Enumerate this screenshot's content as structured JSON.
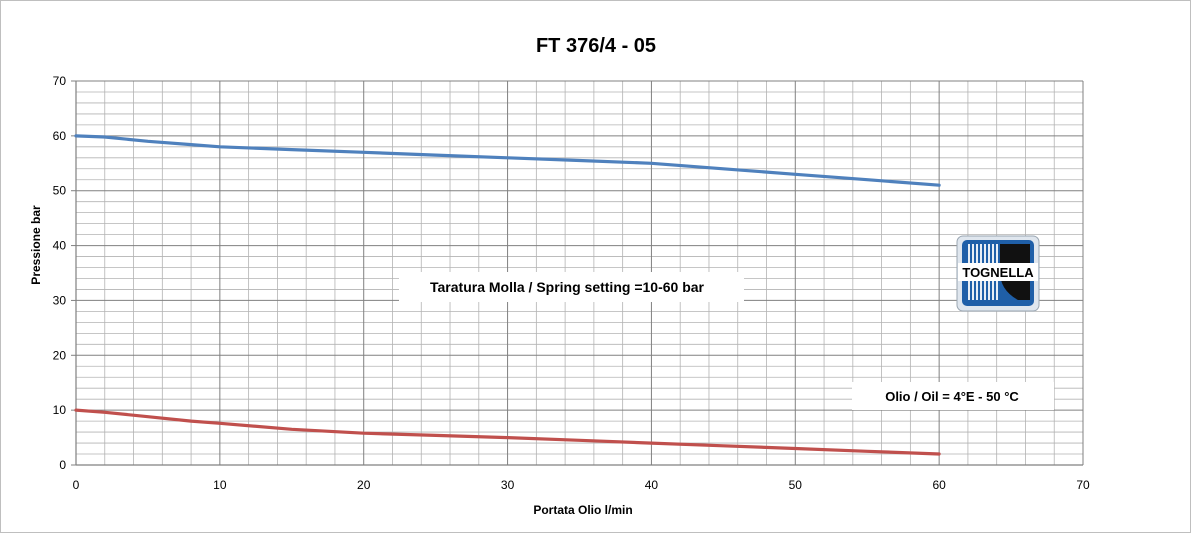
{
  "chart_data": {
    "type": "line",
    "title": "FT 376/4 - 05",
    "xlabel": "Portata Olio l/min",
    "ylabel": "Pressione bar",
    "xlim": [
      0,
      70
    ],
    "ylim": [
      0,
      70
    ],
    "x_major_ticks": [
      0,
      10,
      20,
      30,
      40,
      50,
      60,
      70
    ],
    "y_major_ticks": [
      0,
      10,
      20,
      30,
      40,
      50,
      60,
      70
    ],
    "x_minor_step": 2,
    "y_minor_step": 2,
    "grid": true,
    "legend": "none",
    "series": [
      {
        "color": "#4f81bd",
        "points": [
          [
            0,
            60
          ],
          [
            2,
            59.8
          ],
          [
            5,
            59
          ],
          [
            8,
            58.4
          ],
          [
            10,
            58
          ],
          [
            15,
            57.5
          ],
          [
            20,
            57
          ],
          [
            25,
            56.5
          ],
          [
            30,
            56
          ],
          [
            35,
            55.5
          ],
          [
            40,
            55
          ],
          [
            45,
            54
          ],
          [
            50,
            53
          ],
          [
            55,
            52
          ],
          [
            60,
            51
          ]
        ]
      },
      {
        "color": "#c0504d",
        "points": [
          [
            0,
            10
          ],
          [
            2,
            9.6
          ],
          [
            5,
            8.8
          ],
          [
            8,
            8
          ],
          [
            10,
            7.6
          ],
          [
            15,
            6.5
          ],
          [
            20,
            5.8
          ],
          [
            25,
            5.4
          ],
          [
            30,
            5
          ],
          [
            35,
            4.5
          ],
          [
            40,
            4
          ],
          [
            45,
            3.5
          ],
          [
            50,
            3
          ],
          [
            55,
            2.5
          ],
          [
            60,
            2
          ]
        ]
      }
    ],
    "annotations": [
      "Taratura Molla / Spring setting =10-60 bar",
      "Olio / Oil = 4°E - 50 °C"
    ],
    "logo": "TOGNELLA"
  }
}
